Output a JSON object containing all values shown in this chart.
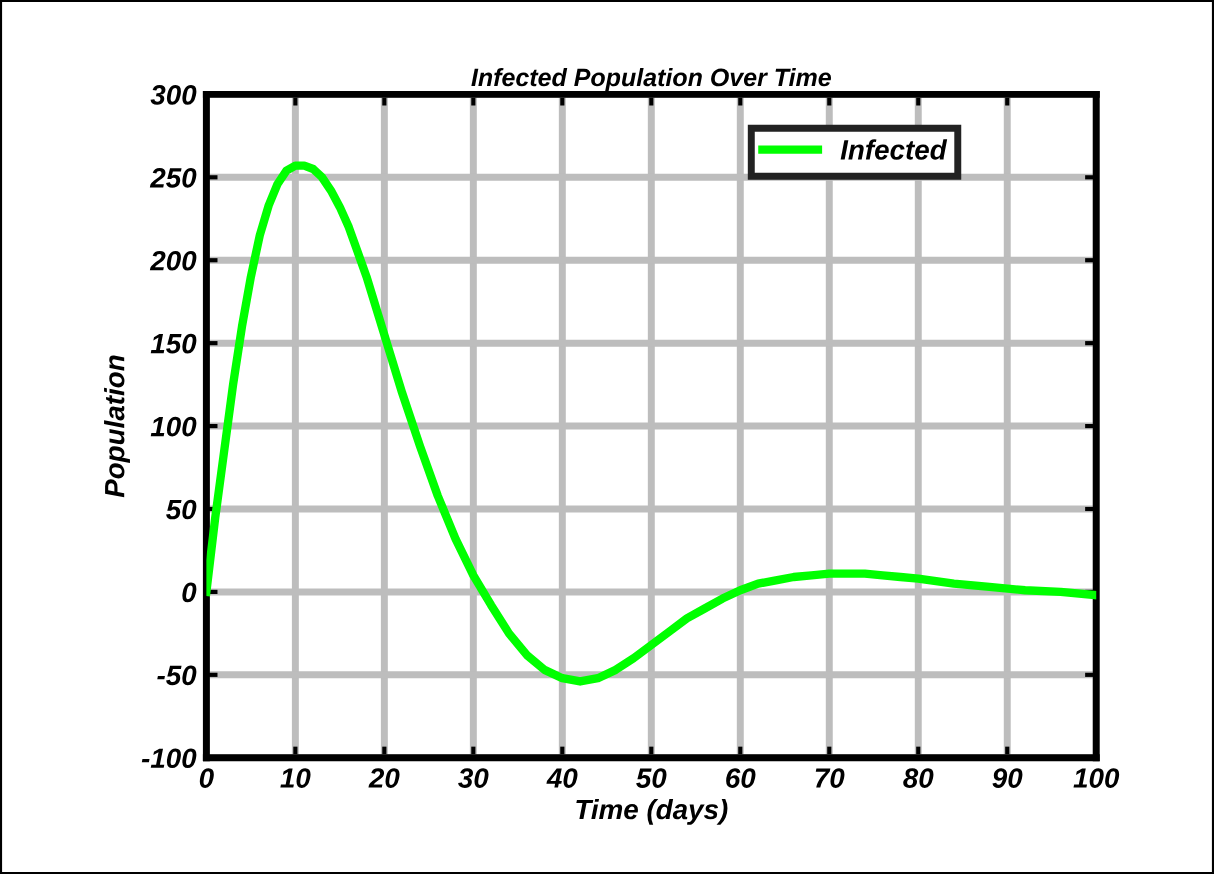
{
  "chart_data": {
    "type": "line",
    "title": "Infected Population Over Time",
    "xlabel": "Time (days)",
    "ylabel": "Population",
    "x": [
      0,
      1,
      2,
      3,
      4,
      5,
      6,
      7,
      8,
      9,
      10,
      11,
      12,
      13,
      14,
      15,
      16,
      17,
      18,
      20,
      22,
      24,
      26,
      28,
      30,
      32,
      34,
      36,
      38,
      40,
      42,
      44,
      46,
      48,
      50,
      52,
      54,
      56,
      58,
      60,
      62,
      64,
      66,
      68,
      70,
      72,
      74,
      76,
      78,
      80,
      84,
      88,
      92,
      96,
      100
    ],
    "series": [
      {
        "name": "Infected",
        "color": "#00ff00",
        "values": [
          0,
          45,
          85,
          125,
          160,
          190,
          215,
          233,
          246,
          254,
          257,
          257,
          255,
          250,
          242,
          232,
          220,
          205,
          190,
          155,
          120,
          88,
          58,
          32,
          10,
          -8,
          -25,
          -38,
          -47,
          -52,
          -54,
          -52,
          -47,
          -40,
          -32,
          -24,
          -16,
          -10,
          -4,
          1,
          5,
          7,
          9,
          10,
          11,
          11,
          11,
          10,
          9,
          8,
          5,
          3,
          1,
          0,
          -2
        ]
      }
    ],
    "xlim": [
      0,
      100
    ],
    "xticks": [
      0,
      10,
      20,
      30,
      40,
      50,
      60,
      70,
      80,
      90,
      100
    ],
    "ylim": [
      -100,
      300
    ],
    "yticks": [
      -100,
      -50,
      0,
      50,
      100,
      150,
      200,
      250,
      300
    ],
    "grid": true,
    "legend": "top right",
    "line_style": "solid",
    "marker": "none"
  }
}
